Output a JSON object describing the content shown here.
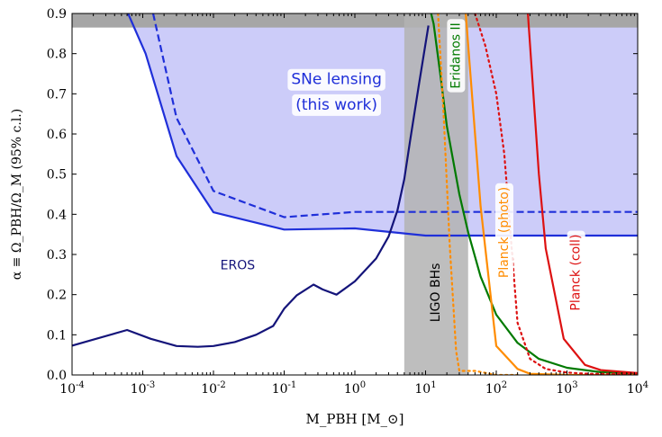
{
  "chart_data": {
    "type": "line",
    "x_scale": "log",
    "xlim": [
      0.0001,
      10000
    ],
    "ylim": [
      0.0,
      0.9
    ],
    "xlabel": "M_PBH [M_⊙]",
    "ylabel": "α ≡ Ω_PBH/Ω_M   (95% c.l.)",
    "x_ticks": [
      "10^-4",
      "10^-3",
      "10^-2",
      "10^-1",
      "10^0",
      "10^1",
      "10^2",
      "10^3",
      "10^4"
    ],
    "y_ticks": [
      "0.0",
      "0.1",
      "0.2",
      "0.3",
      "0.4",
      "0.5",
      "0.6",
      "0.7",
      "0.8",
      "0.9"
    ],
    "grid": false,
    "bands": [
      {
        "name": "LIGO BHs",
        "x_range": [
          5,
          40
        ],
        "color": "#b3b3b3"
      }
    ],
    "top_band": {
      "y_range": [
        0.865,
        0.9
      ],
      "color": "#a6a6a6"
    },
    "series": [
      {
        "name": "SNe lensing (this work)",
        "style": "solid",
        "color": "#1f2fd9",
        "fill": "#ccccf9",
        "x": [
          0.00062,
          0.0011,
          0.003,
          0.01,
          0.1,
          1.0,
          10,
          10000
        ],
        "y": [
          0.9,
          0.8,
          0.545,
          0.405,
          0.362,
          0.365,
          0.347,
          0.347
        ]
      },
      {
        "name": "",
        "style": "dashed",
        "color": "#1f2fd9",
        "x": [
          0.0014,
          0.003,
          0.01,
          0.1,
          1.0,
          10000
        ],
        "y": [
          0.9,
          0.64,
          0.458,
          0.393,
          0.406,
          0.406
        ]
      },
      {
        "name": "EROS",
        "style": "solid",
        "color": "#14147a",
        "x": [
          0.0001,
          0.0006,
          0.0013,
          0.003,
          0.006,
          0.01,
          0.02,
          0.04,
          0.07,
          0.1,
          0.15,
          0.26,
          0.35,
          0.55,
          1.0,
          2.0,
          3.0,
          4.0,
          5.0,
          6.0,
          8.0,
          11.0
        ],
        "y": [
          0.073,
          0.112,
          0.09,
          0.072,
          0.07,
          0.072,
          0.082,
          0.1,
          0.122,
          0.165,
          0.198,
          0.225,
          0.213,
          0.2,
          0.233,
          0.29,
          0.345,
          0.41,
          0.488,
          0.58,
          0.72,
          0.87
        ]
      },
      {
        "name": "Eridanos II",
        "style": "solid",
        "color": "#007a00",
        "x": [
          12,
          13,
          16,
          20,
          30,
          40,
          60,
          100,
          200,
          400,
          1000,
          3000,
          10000
        ],
        "y": [
          0.9,
          0.875,
          0.755,
          0.62,
          0.45,
          0.355,
          0.245,
          0.15,
          0.08,
          0.04,
          0.018,
          0.007,
          0.003
        ]
      },
      {
        "name": "Planck (photo)",
        "style": "solid",
        "color": "#ff8c00",
        "x": [
          37,
          60,
          100,
          200,
          300,
          1000,
          10000
        ],
        "y": [
          0.9,
          0.42,
          0.072,
          0.015,
          0.003,
          0.0,
          0.0
        ]
      },
      {
        "name": "",
        "style": "dotted",
        "color": "#ff8c00",
        "x": [
          15,
          18,
          22,
          27,
          30,
          50,
          100,
          200
        ],
        "y": [
          0.9,
          0.65,
          0.32,
          0.06,
          0.01,
          0.01,
          0.0,
          0.0
        ]
      },
      {
        "name": "",
        "style": "dotted",
        "color": "#dd1111",
        "x": [
          50,
          70,
          100,
          130,
          200,
          300,
          500,
          1000,
          2000,
          10000
        ],
        "y": [
          0.9,
          0.82,
          0.7,
          0.55,
          0.13,
          0.04,
          0.015,
          0.006,
          0.003,
          0.003
        ]
      },
      {
        "name": "Planck (coll)",
        "style": "solid",
        "color": "#dd1111",
        "x": [
          280,
          400,
          500,
          900,
          1800,
          3000,
          10000
        ],
        "y": [
          0.9,
          0.5,
          0.315,
          0.09,
          0.025,
          0.012,
          0.005
        ]
      }
    ],
    "annotations": [
      {
        "text": "SNe lensing",
        "x": 0.55,
        "y": 0.735,
        "color": "#1f2fd9",
        "boxed": true
      },
      {
        "text": "(this work)",
        "x": 0.55,
        "y": 0.672,
        "color": "#1f2fd9",
        "boxed": true
      },
      {
        "text": "EROS",
        "x": 0.022,
        "y": 0.272,
        "color": "#14147a",
        "boxed": false
      },
      {
        "text": "LIGO BHs",
        "x": 14,
        "y": 0.205,
        "color": "#000000",
        "boxed": false,
        "rotate": -90
      },
      {
        "text": "Eridanos II",
        "x": 27,
        "y": 0.795,
        "color": "#007a00",
        "boxed": true,
        "rotate": -90
      },
      {
        "text": "Planck (photo)",
        "x": 130,
        "y": 0.355,
        "color": "#ff8c00",
        "boxed": true,
        "rotate": -90
      },
      {
        "text": "Planck (coll)",
        "x": 1350,
        "y": 0.255,
        "color": "#dd1111",
        "boxed": true,
        "rotate": -90
      }
    ]
  }
}
